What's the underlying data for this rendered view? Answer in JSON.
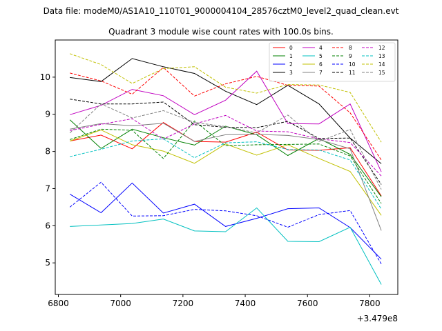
{
  "figure": {
    "suptitle": "Data file: modeM0/AS1A10_110T01_9000004104_28576cztM0_level2_quad_clean.evt"
  },
  "chart_data": {
    "type": "line",
    "title": "Quadrant 3 module wise count rates with 100.0s bins.",
    "xlabel": "",
    "ylabel": "",
    "x_offset_label": "+3.479e8",
    "x_offset": 347900000,
    "xlim": [
      6790,
      7890
    ],
    "ylim": [
      4.15,
      11.0
    ],
    "xticks": [
      6800,
      7000,
      7200,
      7400,
      7600,
      7800
    ],
    "yticks": [
      5,
      6,
      7,
      8,
      9,
      10
    ],
    "grid": false,
    "legend_position": "top-right",
    "x": [
      6837,
      6937,
      7037,
      7137,
      7237,
      7337,
      7437,
      7537,
      7637,
      7737,
      7837
    ],
    "series": [
      {
        "name": "0",
        "color": "#ff0000",
        "dash": "solid",
        "values": [
          8.28,
          8.44,
          8.07,
          8.78,
          8.27,
          8.25,
          8.52,
          8.04,
          8.03,
          8.1,
          6.8
        ]
      },
      {
        "name": "1",
        "color": "#008000",
        "dash": "solid",
        "values": [
          8.85,
          8.08,
          8.6,
          8.37,
          8.17,
          8.68,
          8.45,
          7.89,
          8.35,
          7.92,
          6.78
        ]
      },
      {
        "name": "2",
        "color": "#0000ff",
        "dash": "solid",
        "values": [
          6.85,
          6.35,
          7.15,
          6.34,
          6.58,
          5.98,
          6.2,
          6.46,
          6.48,
          5.95,
          5.1
        ]
      },
      {
        "name": "3",
        "color": "#000000",
        "dash": "solid",
        "values": [
          9.99,
          9.88,
          10.5,
          10.28,
          10.1,
          9.62,
          9.26,
          9.78,
          9.28,
          8.36,
          7.67
        ]
      },
      {
        "name": "4",
        "color": "#c000c0",
        "dash": "solid",
        "values": [
          8.99,
          9.24,
          9.67,
          9.5,
          8.99,
          9.38,
          10.16,
          8.75,
          8.74,
          9.28,
          7.45
        ]
      },
      {
        "name": "5",
        "color": "#00c0c0",
        "dash": "solid",
        "values": [
          5.98,
          6.02,
          6.06,
          6.18,
          5.86,
          5.84,
          6.48,
          5.58,
          5.57,
          5.96,
          4.42
        ]
      },
      {
        "name": "6",
        "color": "#c0c000",
        "dash": "solid",
        "values": [
          8.28,
          8.58,
          8.18,
          8.01,
          7.68,
          8.2,
          7.9,
          8.18,
          7.81,
          7.46,
          6.28
        ]
      },
      {
        "name": "7",
        "color": "#808080",
        "dash": "solid",
        "values": [
          8.6,
          8.75,
          8.69,
          8.76,
          8.27,
          8.45,
          8.46,
          8.43,
          8.32,
          8.07,
          5.87
        ]
      },
      {
        "name": "8",
        "color": "#ff0000",
        "dash": "dashed",
        "values": [
          10.11,
          9.9,
          9.54,
          10.26,
          9.49,
          9.82,
          10.02,
          9.78,
          9.76,
          9.04,
          7.77
        ]
      },
      {
        "name": "9",
        "color": "#008000",
        "dash": "dashed",
        "values": [
          8.32,
          8.6,
          8.57,
          7.81,
          8.82,
          8.15,
          8.18,
          8.19,
          8.2,
          7.88,
          6.6
        ]
      },
      {
        "name": "10",
        "color": "#0000ff",
        "dash": "dashed",
        "values": [
          6.5,
          7.17,
          6.26,
          6.27,
          6.44,
          6.4,
          6.27,
          5.96,
          6.3,
          6.41,
          4.97
        ]
      },
      {
        "name": "11",
        "color": "#000000",
        "dash": "dashed",
        "values": [
          9.41,
          9.28,
          9.28,
          9.33,
          8.72,
          8.65,
          8.64,
          8.81,
          8.35,
          8.36,
          7.11
        ]
      },
      {
        "name": "12",
        "color": "#c000c0",
        "dash": "dashed",
        "values": [
          8.56,
          8.73,
          8.88,
          8.33,
          8.74,
          8.97,
          8.55,
          8.53,
          8.34,
          8.24,
          7.34
        ]
      },
      {
        "name": "13",
        "color": "#00c0c0",
        "dash": "dashed",
        "values": [
          7.86,
          8.06,
          8.28,
          8.34,
          7.83,
          8.23,
          8.26,
          8.05,
          8.04,
          7.77,
          6.45
        ]
      },
      {
        "name": "14",
        "color": "#c0c000",
        "dash": "dashed",
        "values": [
          10.63,
          10.34,
          9.83,
          10.23,
          10.28,
          9.73,
          9.57,
          9.8,
          9.79,
          9.59,
          8.25
        ]
      },
      {
        "name": "15",
        "color": "#808080",
        "dash": "dashed",
        "values": [
          8.5,
          9.28,
          8.9,
          9.1,
          8.78,
          8.67,
          8.5,
          8.98,
          8.27,
          8.59,
          6.98
        ]
      }
    ]
  }
}
